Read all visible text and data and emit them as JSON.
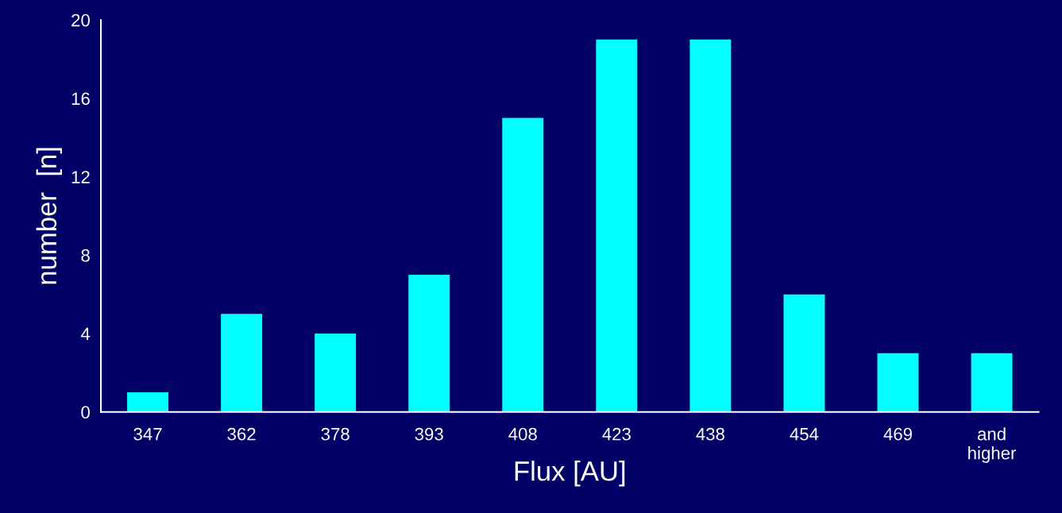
{
  "chart_data": {
    "type": "bar",
    "xlabel": "Flux [AU]",
    "ylabel": "number  [n]",
    "categories": [
      "347",
      "362",
      "378",
      "393",
      "408",
      "423",
      "438",
      "454",
      "469",
      "and\nhigher"
    ],
    "values": [
      1,
      5,
      4,
      7,
      15,
      19,
      19,
      6,
      3,
      3
    ],
    "color": "#00ffff",
    "ylim": [
      0,
      20
    ],
    "yticks": [
      0,
      4,
      8,
      12,
      16,
      20
    ],
    "grid": false,
    "legend": false
  }
}
